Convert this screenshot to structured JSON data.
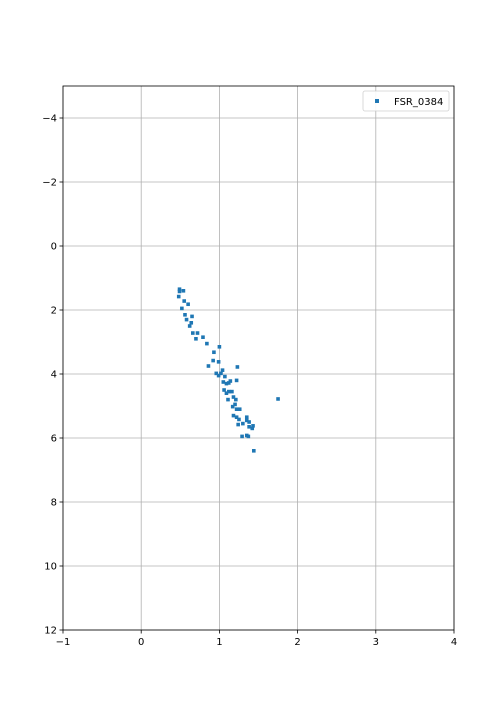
{
  "chart_data": {
    "type": "scatter",
    "title": "",
    "xlabel": "",
    "ylabel": "",
    "xlim": [
      -1,
      4
    ],
    "ylim": [
      12,
      -5
    ],
    "y_inverted": true,
    "grid": true,
    "legend_position": "top-right",
    "x_ticks": [
      -1,
      0,
      1,
      2,
      3,
      4
    ],
    "y_ticks": [
      -4,
      -2,
      0,
      2,
      4,
      6,
      8,
      10,
      12
    ],
    "x_tick_labels": [
      "−1",
      "0",
      "1",
      "2",
      "3",
      "4"
    ],
    "y_tick_labels": [
      "−4",
      "−2",
      "0",
      "2",
      "4",
      "6",
      "8",
      "10",
      "12"
    ],
    "series": [
      {
        "name": "FSR_0384",
        "color": "#1f77b4",
        "marker": "square",
        "points": [
          [
            0.49,
            1.35
          ],
          [
            0.49,
            1.42
          ],
          [
            0.48,
            1.58
          ],
          [
            0.54,
            1.4
          ],
          [
            0.55,
            1.72
          ],
          [
            0.52,
            1.95
          ],
          [
            0.6,
            1.82
          ],
          [
            0.56,
            2.15
          ],
          [
            0.58,
            2.3
          ],
          [
            0.65,
            2.2
          ],
          [
            0.64,
            2.4
          ],
          [
            0.62,
            2.5
          ],
          [
            0.66,
            2.72
          ],
          [
            0.72,
            2.72
          ],
          [
            0.7,
            2.9
          ],
          [
            0.79,
            2.85
          ],
          [
            0.84,
            3.05
          ],
          [
            0.93,
            3.32
          ],
          [
            1.0,
            3.15
          ],
          [
            0.92,
            3.58
          ],
          [
            0.99,
            3.62
          ],
          [
            0.86,
            3.75
          ],
          [
            0.96,
            3.98
          ],
          [
            1.02,
            3.98
          ],
          [
            1.04,
            3.88
          ],
          [
            0.99,
            4.05
          ],
          [
            1.07,
            4.08
          ],
          [
            1.05,
            4.25
          ],
          [
            1.09,
            4.3
          ],
          [
            1.12,
            4.28
          ],
          [
            1.23,
            3.78
          ],
          [
            1.22,
            4.2
          ],
          [
            1.14,
            4.22
          ],
          [
            1.06,
            4.5
          ],
          [
            1.09,
            4.6
          ],
          [
            1.12,
            4.55
          ],
          [
            1.16,
            4.55
          ],
          [
            1.11,
            4.8
          ],
          [
            1.18,
            4.72
          ],
          [
            1.21,
            4.8
          ],
          [
            1.2,
            4.95
          ],
          [
            1.17,
            5.02
          ],
          [
            1.22,
            5.1
          ],
          [
            1.26,
            5.1
          ],
          [
            1.18,
            5.3
          ],
          [
            1.22,
            5.35
          ],
          [
            1.25,
            5.42
          ],
          [
            1.24,
            5.58
          ],
          [
            1.3,
            5.55
          ],
          [
            1.35,
            5.35
          ],
          [
            1.35,
            5.45
          ],
          [
            1.38,
            5.5
          ],
          [
            1.38,
            5.65
          ],
          [
            1.42,
            5.7
          ],
          [
            1.43,
            5.62
          ],
          [
            1.29,
            5.95
          ],
          [
            1.35,
            5.92
          ],
          [
            1.37,
            5.95
          ],
          [
            1.44,
            6.4
          ],
          [
            1.75,
            4.78
          ]
        ]
      }
    ]
  }
}
